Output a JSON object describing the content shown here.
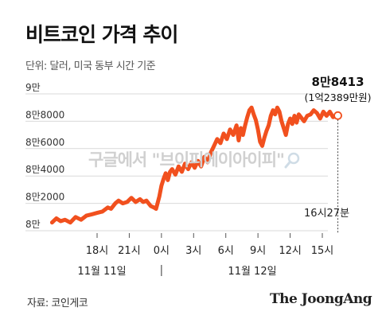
{
  "title": "비트코인 가격 추이",
  "unit_note": "단위: 달러, 미국 동부 시간 기준",
  "source": "자료: 코인게코",
  "brand": "The JoongAng",
  "callout": {
    "value": "8만8413",
    "krw": "(1억2389만원)",
    "time": "16시27분"
  },
  "watermark": "구글에서 \"브이피에이아이피\"",
  "day_labels": {
    "left": "11월 11일",
    "right": "11월 12일"
  },
  "colors": {
    "series": "#f1501e",
    "text": "#111111",
    "tick": "#555555"
  },
  "chart_data": {
    "type": "line",
    "title": "비트코인 가격 추이",
    "unit": "달러",
    "x_unit": "hours (ET, from 11월 11일 0시)",
    "x_range": [
      13,
      40.6
    ],
    "ylim": [
      80000,
      90000
    ],
    "yticks": [
      {
        "value": 80000,
        "label": "8만"
      },
      {
        "value": 82000,
        "label": "8만2000"
      },
      {
        "value": 84000,
        "label": "8만4000"
      },
      {
        "value": 86000,
        "label": "8만6000"
      },
      {
        "value": 88000,
        "label": "8만8000"
      },
      {
        "value": 90000,
        "label": "9만"
      }
    ],
    "xticks": [
      {
        "value": 18,
        "label": "18시"
      },
      {
        "value": 21,
        "label": "21시"
      },
      {
        "value": 24,
        "label": "0시"
      },
      {
        "value": 27,
        "label": "3시"
      },
      {
        "value": 30,
        "label": "6시"
      },
      {
        "value": 33,
        "label": "9시"
      },
      {
        "value": 36,
        "label": "12시"
      },
      {
        "value": 39,
        "label": "15시"
      }
    ],
    "last_point": {
      "x": 40.45,
      "y": 88413
    },
    "series": [
      {
        "values": [
          [
            13.8,
            80600
          ],
          [
            14.2,
            80900
          ],
          [
            14.6,
            80700
          ],
          [
            15.0,
            80800
          ],
          [
            15.5,
            80600
          ],
          [
            16.0,
            81000
          ],
          [
            16.5,
            80800
          ],
          [
            17.0,
            81100
          ],
          [
            17.5,
            81200
          ],
          [
            18.0,
            81300
          ],
          [
            18.5,
            81400
          ],
          [
            19.0,
            81700
          ],
          [
            19.3,
            81600
          ],
          [
            19.7,
            82000
          ],
          [
            20.0,
            82200
          ],
          [
            20.4,
            82000
          ],
          [
            20.8,
            82100
          ],
          [
            21.2,
            82400
          ],
          [
            21.6,
            82100
          ],
          [
            22.0,
            82300
          ],
          [
            22.3,
            82100
          ],
          [
            22.6,
            82200
          ],
          [
            23.0,
            81800
          ],
          [
            23.3,
            81700
          ],
          [
            23.5,
            81600
          ],
          [
            23.6,
            81900
          ],
          [
            23.8,
            82500
          ],
          [
            24.0,
            83300
          ],
          [
            24.2,
            83800
          ],
          [
            24.4,
            84200
          ],
          [
            24.6,
            83700
          ],
          [
            24.8,
            84300
          ],
          [
            25.0,
            84500
          ],
          [
            25.3,
            84100
          ],
          [
            25.6,
            84700
          ],
          [
            25.9,
            84300
          ],
          [
            26.2,
            84900
          ],
          [
            26.5,
            84500
          ],
          [
            26.8,
            85000
          ],
          [
            27.1,
            84600
          ],
          [
            27.4,
            85100
          ],
          [
            27.7,
            84700
          ],
          [
            28.0,
            85400
          ],
          [
            28.3,
            85000
          ],
          [
            28.6,
            85700
          ],
          [
            28.9,
            86200
          ],
          [
            29.2,
            86700
          ],
          [
            29.5,
            86400
          ],
          [
            29.8,
            87100
          ],
          [
            30.1,
            86700
          ],
          [
            30.4,
            87400
          ],
          [
            30.7,
            87000
          ],
          [
            31.0,
            87700
          ],
          [
            31.2,
            86600
          ],
          [
            31.4,
            87500
          ],
          [
            31.6,
            87000
          ],
          [
            31.8,
            87700
          ],
          [
            32.0,
            88300
          ],
          [
            32.2,
            88800
          ],
          [
            32.4,
            89000
          ],
          [
            32.6,
            88500
          ],
          [
            32.8,
            88100
          ],
          [
            33.0,
            87400
          ],
          [
            33.2,
            86500
          ],
          [
            33.4,
            86200
          ],
          [
            33.6,
            86800
          ],
          [
            33.8,
            87300
          ],
          [
            34.0,
            87700
          ],
          [
            34.2,
            88400
          ],
          [
            34.4,
            88800
          ],
          [
            34.6,
            88500
          ],
          [
            34.8,
            89000
          ],
          [
            35.0,
            88700
          ],
          [
            35.2,
            88000
          ],
          [
            35.4,
            87500
          ],
          [
            35.6,
            87000
          ],
          [
            35.8,
            87800
          ],
          [
            36.0,
            88200
          ],
          [
            36.2,
            87800
          ],
          [
            36.4,
            88400
          ],
          [
            36.6,
            87900
          ],
          [
            36.8,
            88500
          ],
          [
            37.0,
            88300
          ],
          [
            37.3,
            88000
          ],
          [
            37.6,
            88400
          ],
          [
            37.9,
            88500
          ],
          [
            38.2,
            88800
          ],
          [
            38.5,
            88600
          ],
          [
            38.8,
            88200
          ],
          [
            39.1,
            88700
          ],
          [
            39.4,
            88400
          ],
          [
            39.7,
            88700
          ],
          [
            40.0,
            88300
          ],
          [
            40.45,
            88413
          ]
        ]
      }
    ]
  }
}
